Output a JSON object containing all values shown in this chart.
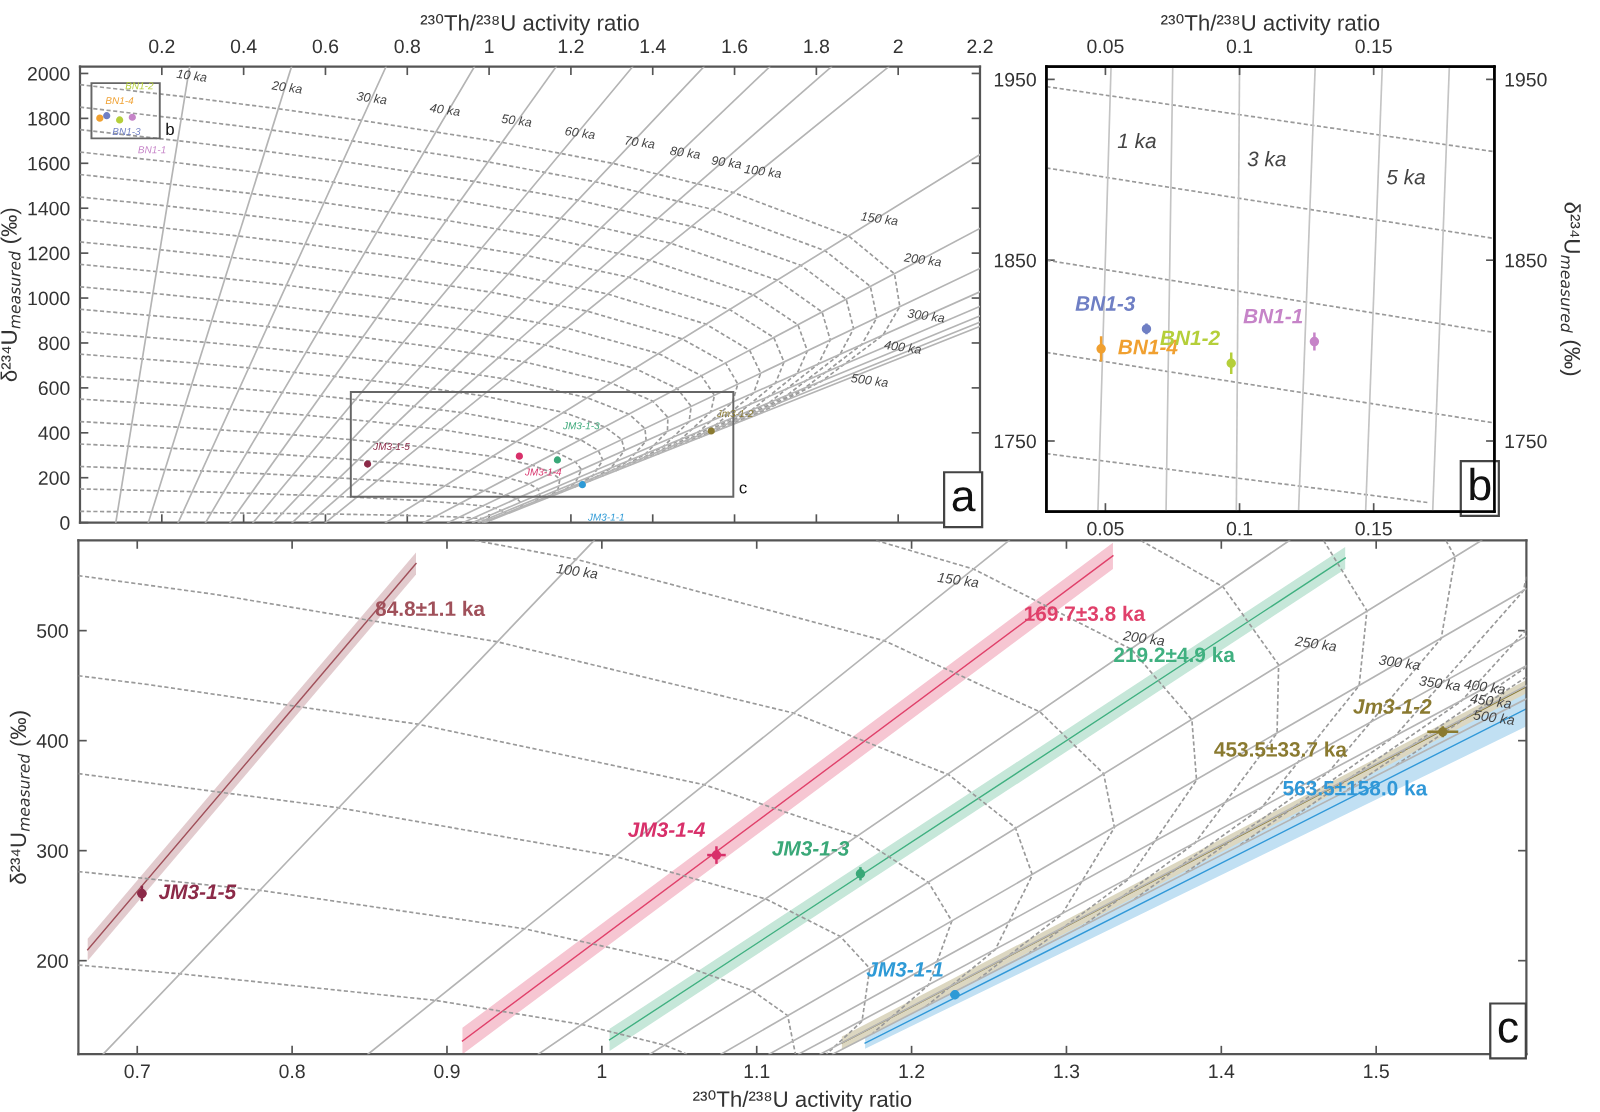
{
  "chart_data": [
    {
      "type": "line",
      "xlabel": "²³⁰Th/²³⁸U activity ratio",
      "ylabel": "δ²³⁴U$_{measured}$ (‰)",
      "xlim": [
        0,
        2.2
      ],
      "xticks": [
        0.2,
        0.4,
        0.6,
        0.8,
        1,
        1.2,
        1.4,
        1.6,
        1.8,
        2,
        2.2
      ],
      "ylim": [
        0,
        2030
      ],
      "yticks": [
        0,
        200,
        400,
        600,
        800,
        1000,
        1200,
        1400,
        1600,
        1800,
        2000
      ],
      "series": [
        {
          "line_style": "dashed",
          "color": "#9a9a9a",
          "x": [
            0,
            0.092,
            0.176,
            0.252,
            0.384,
            0.495,
            0.625,
            0.776,
            0.869,
            0.927,
            0.962,
            0.996,
            1.007
          ],
          "values": [
            50,
            49,
            47,
            46,
            43,
            41,
            38,
            33,
            28,
            25,
            21,
            16,
            12
          ]
        },
        {
          "line_style": "dashed",
          "color": "#9a9a9a",
          "x": [
            0,
            0.1,
            0.192,
            0.275,
            0.419,
            0.537,
            0.677,
            0.834,
            0.928,
            0.984,
            1.015,
            1.039,
            1.04
          ],
          "values": [
            150,
            146,
            142,
            138,
            130,
            123,
            113,
            98,
            85,
            74,
            64,
            48,
            37
          ]
        },
        {
          "line_style": "dashed",
          "color": "#9a9a9a",
          "x": [
            0,
            0.109,
            0.208,
            0.298,
            0.453,
            0.58,
            0.728,
            0.892,
            0.987,
            1.041,
            1.068,
            1.082,
            1.074
          ],
          "values": [
            250,
            243,
            236,
            230,
            217,
            205,
            188,
            164,
            142,
            123,
            107,
            81,
            61
          ]
        },
        {
          "line_style": "dashed",
          "color": "#9a9a9a",
          "x": [
            0,
            0.118,
            0.224,
            0.321,
            0.487,
            0.622,
            0.779,
            0.95,
            1.046,
            1.097,
            1.12,
            1.125,
            1.108
          ],
          "values": [
            350,
            340,
            331,
            322,
            304,
            287,
            264,
            229,
            199,
            173,
            150,
            113,
            85
          ]
        },
        {
          "line_style": "dashed",
          "color": "#9a9a9a",
          "x": [
            0,
            0.126,
            0.241,
            0.344,
            0.521,
            0.665,
            0.83,
            1.008,
            1.106,
            1.154,
            1.173,
            1.168,
            1.141
          ],
          "values": [
            450,
            437,
            425,
            413,
            391,
            369,
            339,
            295,
            256,
            222,
            193,
            145,
            110
          ]
        },
        {
          "line_style": "dashed",
          "color": "#9a9a9a",
          "x": [
            0,
            0.135,
            0.257,
            0.367,
            0.555,
            0.707,
            0.881,
            1.066,
            1.165,
            1.211,
            1.226,
            1.211,
            1.175
          ],
          "values": [
            550,
            535,
            520,
            505,
            478,
            451,
            415,
            360,
            313,
            271,
            236,
            178,
            134
          ]
        },
        {
          "line_style": "dashed",
          "color": "#9a9a9a",
          "x": [
            0,
            0.144,
            0.273,
            0.39,
            0.589,
            0.75,
            0.932,
            1.124,
            1.224,
            1.267,
            1.278,
            1.254,
            1.209
          ],
          "values": [
            650,
            632,
            614,
            597,
            564,
            533,
            490,
            425,
            369,
            321,
            278,
            210,
            158
          ]
        },
        {
          "line_style": "dashed",
          "color": "#9a9a9a",
          "x": [
            0,
            0.152,
            0.289,
            0.413,
            0.623,
            0.792,
            0.983,
            1.182,
            1.283,
            1.324,
            1.331,
            1.297,
            1.243
          ],
          "values": [
            750,
            729,
            709,
            689,
            651,
            615,
            565,
            491,
            426,
            370,
            321,
            242,
            183
          ]
        },
        {
          "line_style": "dashed",
          "color": "#9a9a9a",
          "x": [
            0,
            0.161,
            0.306,
            0.436,
            0.657,
            0.835,
            1.035,
            1.24,
            1.342,
            1.381,
            1.384,
            1.34,
            1.276
          ],
          "values": [
            850,
            826,
            803,
            781,
            738,
            697,
            641,
            556,
            483,
            419,
            364,
            274,
            207
          ]
        },
        {
          "line_style": "dashed",
          "color": "#9a9a9a",
          "x": [
            0,
            0.169,
            0.322,
            0.459,
            0.691,
            0.877,
            1.086,
            1.298,
            1.401,
            1.437,
            1.436,
            1.383,
            1.31
          ],
          "values": [
            950,
            923,
            898,
            873,
            825,
            779,
            716,
            622,
            540,
            469,
            407,
            307,
            231
          ]
        },
        {
          "line_style": "dashed",
          "color": "#9a9a9a",
          "x": [
            0,
            0.178,
            0.338,
            0.482,
            0.725,
            0.92,
            1.137,
            1.356,
            1.46,
            1.494,
            1.489,
            1.426,
            1.344
          ],
          "values": [
            1050,
            1021,
            992,
            965,
            912,
            862,
            791,
            687,
            597,
            518,
            450,
            339,
            256
          ]
        },
        {
          "line_style": "dashed",
          "color": "#9a9a9a",
          "x": [
            0,
            0.187,
            0.354,
            0.505,
            0.759,
            0.962,
            1.188,
            1.414,
            1.519,
            1.551,
            1.542,
            1.469,
            1.377
          ],
          "values": [
            1150,
            1118,
            1087,
            1057,
            998,
            944,
            867,
            753,
            654,
            567,
            493,
            371,
            280
          ]
        },
        {
          "line_style": "dashed",
          "color": "#9a9a9a",
          "x": [
            0,
            0.195,
            0.371,
            0.528,
            0.793,
            1.005,
            1.239,
            1.472,
            1.578,
            1.608,
            1.595,
            1.512,
            1.411
          ],
          "values": [
            1250,
            1215,
            1181,
            1148,
            1085,
            1026,
            942,
            818,
            711,
            617,
            536,
            404,
            304
          ]
        },
        {
          "line_style": "dashed",
          "color": "#9a9a9a",
          "x": [
            0,
            0.204,
            0.387,
            0.551,
            0.827,
            1.047,
            1.29,
            1.53,
            1.637,
            1.664,
            1.647,
            1.555,
            1.445
          ],
          "values": [
            1350,
            1312,
            1276,
            1240,
            1172,
            1108,
            1018,
            884,
            767,
            666,
            578,
            436,
            329
          ]
        },
        {
          "line_style": "dashed",
          "color": "#9a9a9a",
          "x": [
            0,
            0.213,
            0.403,
            0.574,
            0.862,
            1.09,
            1.341,
            1.588,
            1.696,
            1.721,
            1.7,
            1.598,
            1.479
          ],
          "values": [
            1450,
            1410,
            1370,
            1332,
            1259,
            1190,
            1093,
            949,
            824,
            715,
            621,
            468,
            353
          ]
        },
        {
          "line_style": "dashed",
          "color": "#9a9a9a",
          "x": [
            0,
            0.221,
            0.419,
            0.597,
            0.896,
            1.132,
            1.393,
            1.646,
            1.755,
            1.778,
            1.753,
            1.641,
            1.512
          ],
          "values": [
            1550,
            1507,
            1465,
            1424,
            1346,
            1272,
            1168,
            1014,
            881,
            765,
            664,
            500,
            377
          ]
        },
        {
          "line_style": "dashed",
          "color": "#9a9a9a",
          "x": [
            0,
            0.23,
            0.436,
            0.62,
            0.93,
            1.175,
            1.444,
            1.704,
            1.814,
            1.834,
            1.805,
            1.684,
            1.546
          ],
          "values": [
            1650,
            1604,
            1559,
            1516,
            1433,
            1354,
            1244,
            1080,
            938,
            814,
            707,
            533,
            402
          ]
        },
        {
          "line_style": "dashed",
          "color": "#9a9a9a",
          "x": [
            0,
            0.238,
            0.452,
            0.643,
            0.964,
            1.217,
            1.495,
            1.763,
            1.873,
            1.891,
            1.858,
            1.727,
            1.58
          ],
          "values": [
            1750,
            1701,
            1654,
            1608,
            1519,
            1436,
            1319,
            1145,
            995,
            863,
            750,
            565,
            426
          ]
        },
        {
          "line_style": "dashed",
          "color": "#9a9a9a",
          "x": [
            0,
            0.247,
            0.468,
            0.665,
            0.998,
            1.259,
            1.546,
            1.821,
            1.932,
            1.948,
            1.911,
            1.77,
            1.613
          ],
          "values": [
            1850,
            1798,
            1748,
            1700,
            1606,
            1518,
            1395,
            1211,
            1052,
            913,
            793,
            597,
            450
          ]
        },
        {
          "line_style": "dashed",
          "color": "#9a9a9a",
          "x": [
            0,
            0.256,
            0.484,
            0.688,
            1.032,
            1.302,
            1.597,
            1.879,
            1.991,
            2.004,
            1.963,
            1.813,
            1.647
          ],
          "values": [
            1950,
            1896,
            1843,
            1791,
            1693,
            1600,
            1470,
            1276,
            1108,
            962,
            835,
            630,
            475
          ]
        },
        {
          "color": "#b4b4b4",
          "x": [
            0.0875,
            0.268
          ],
          "values": [
            0,
            2030
          ]
        },
        {
          "color": "#b4b4b4",
          "x": [
            0.167,
            0.517
          ],
          "values": [
            0,
            2030
          ]
        },
        {
          "color": "#b4b4b4",
          "x": [
            0.24,
            0.748
          ],
          "values": [
            0,
            2030
          ]
        },
        {
          "color": "#b4b4b4",
          "x": [
            0.307,
            0.964
          ],
          "values": [
            0,
            2030
          ]
        },
        {
          "color": "#b4b4b4",
          "x": [
            0.367,
            1.164
          ],
          "values": [
            0,
            2030
          ]
        },
        {
          "color": "#b4b4b4",
          "x": [
            0.423,
            1.351
          ],
          "values": [
            0,
            2030
          ]
        },
        {
          "color": "#b4b4b4",
          "x": [
            0.473,
            1.525
          ],
          "values": [
            0,
            2030
          ]
        },
        {
          "color": "#b4b4b4",
          "x": [
            0.519,
            1.686
          ],
          "values": [
            0,
            2030
          ]
        },
        {
          "color": "#b4b4b4",
          "x": [
            0.561,
            1.837
          ],
          "values": [
            0,
            2030
          ]
        },
        {
          "color": "#b4b4b4",
          "x": [
            0.6,
            1.977
          ],
          "values": [
            0,
            2030
          ]
        },
        {
          "color": "#b4b4b4",
          "x": [
            0.747,
            2.2
          ],
          "values": [
            0,
            1639
          ]
        },
        {
          "color": "#b4b4b4",
          "x": [
            0.84,
            2.2
          ],
          "values": [
            0,
            1310
          ]
        },
        {
          "color": "#b4b4b4",
          "x": [
            0.899,
            2.2
          ],
          "values": [
            0,
            1132
          ]
        },
        {
          "color": "#b4b4b4",
          "x": [
            0.936,
            2.2
          ],
          "values": [
            0,
            1028
          ]
        },
        {
          "color": "#b4b4b4",
          "x": [
            0.96,
            2.2
          ],
          "values": [
            0,
            963
          ]
        },
        {
          "color": "#b4b4b4",
          "x": [
            0.974,
            2.2
          ],
          "values": [
            0,
            921
          ]
        },
        {
          "color": "#b4b4b4",
          "x": [
            0.984,
            2.2
          ],
          "values": [
            0,
            893
          ]
        },
        {
          "color": "#b4b4b4",
          "x": [
            0.99,
            2.2
          ],
          "values": [
            0,
            874
          ]
        },
        {
          "type": "scatter",
          "marker": "circle",
          "name": "BN1-4",
          "color": "#f0a030",
          "x": [
            0.0484
          ],
          "values": [
            1801
          ]
        },
        {
          "type": "scatter",
          "marker": "circle",
          "name": "BN1-3",
          "color": "#6f7fc4",
          "x": [
            0.0653
          ],
          "values": [
            1812
          ]
        },
        {
          "type": "scatter",
          "marker": "circle",
          "name": "BN1-2",
          "color": "#b5cf3a",
          "x": [
            0.0969
          ],
          "values": [
            1793
          ]
        },
        {
          "type": "scatter",
          "marker": "circle",
          "name": "BN1-1",
          "color": "#c684c8",
          "x": [
            0.1279
          ],
          "values": [
            1805
          ]
        },
        {
          "type": "scatter",
          "marker": "circle",
          "name": "JM3-1-5",
          "color": "#8c2a48",
          "x": [
            0.703
          ],
          "values": [
            261
          ]
        },
        {
          "type": "scatter",
          "marker": "circle",
          "name": "JM3-1-4",
          "color": "#d8306a",
          "x": [
            1.074
          ],
          "values": [
            296
          ]
        },
        {
          "type": "scatter",
          "marker": "circle",
          "name": "JM3-1-3",
          "color": "#3aa878",
          "x": [
            1.167
          ],
          "values": [
            279
          ]
        },
        {
          "type": "scatter",
          "marker": "circle",
          "name": "JM3-1-1",
          "color": "#2e9ad6",
          "x": [
            1.228
          ],
          "values": [
            169
          ]
        },
        {
          "type": "scatter",
          "marker": "circle",
          "name": "Jm3-1-2",
          "color": "#8a7a30",
          "x": [
            1.543
          ],
          "values": [
            408
          ]
        }
      ],
      "annotations": [
        "a",
        "b",
        "c",
        {
          "text": "10 ka",
          "x": 0.273,
          "y": 1986
        },
        {
          "text": "20 ka",
          "x": 0.506,
          "y": 1934
        },
        {
          "text": "30 ka",
          "x": 0.713,
          "y": 1886
        },
        {
          "text": "40 ka",
          "x": 0.892,
          "y": 1834
        },
        {
          "text": "50 ka",
          "x": 1.067,
          "y": 1786
        },
        {
          "text": "60 ka",
          "x": 1.222,
          "y": 1731
        },
        {
          "text": "70 ka",
          "x": 1.368,
          "y": 1689
        },
        {
          "text": "80 ka",
          "x": 1.479,
          "y": 1643
        },
        {
          "text": "90 ka",
          "x": 1.58,
          "y": 1600
        },
        {
          "text": "100 ka",
          "x": 1.669,
          "y": 1560
        },
        {
          "text": "150 ka",
          "x": 1.954,
          "y": 1349
        },
        {
          "text": "200 ka",
          "x": 2.06,
          "y": 1166
        },
        {
          "text": "300 ka",
          "x": 2.068,
          "y": 917
        },
        {
          "text": "400 ka",
          "x": 2.011,
          "y": 777
        },
        {
          "text": "500 ka",
          "x": 1.93,
          "y": 629
        }
      ]
    },
    {
      "type": "line",
      "x2label": "²³⁰Th/²³⁸U activity ratio",
      "y2label": "δ²³⁴U$_{measured}$ (‰)",
      "xlim": [
        0.028,
        0.195
      ],
      "xticks": [
        0.05,
        0.1,
        0.15
      ],
      "x2lim": [
        0.028,
        0.195
      ],
      "x2ticks": [
        0.05,
        0.1,
        0.15
      ],
      "ylim": [
        1711,
        1957
      ],
      "yticks": [
        1750,
        1850,
        1950
      ],
      "y2lim": [
        1711,
        1957
      ],
      "y2ticks": [
        1750,
        1850,
        1950
      ],
      "series": [
        {
          "line_style": "dashed",
          "color": "#9a9a9a",
          "x": [
            0.028,
            0.195
          ],
          "values": [
            1946,
            1910
          ]
        },
        {
          "line_style": "dashed",
          "color": "#9a9a9a",
          "x": [
            0.028,
            0.195
          ],
          "values": [
            1901,
            1862
          ]
        },
        {
          "line_style": "dashed",
          "color": "#9a9a9a",
          "x": [
            0.028,
            0.195
          ],
          "values": [
            1850,
            1810
          ]
        },
        {
          "line_style": "dashed",
          "color": "#9a9a9a",
          "x": [
            0.028,
            0.195
          ],
          "values": [
            1799,
            1760
          ]
        },
        {
          "line_style": "dashed",
          "color": "#9a9a9a",
          "x": [
            0.028,
            0.17
          ],
          "values": [
            1743,
            1716
          ]
        },
        {
          "color": "#c4c4c4",
          "x": [
            0.0521,
            0.0472
          ],
          "values": [
            1957,
            1711
          ]
        },
        {
          "color": "#c4c4c4",
          "x": [
            0.0751,
            0.0726
          ],
          "values": [
            1957,
            1711
          ]
        },
        {
          "color": "#c4c4c4",
          "x": [
            0.1,
            0.0988
          ],
          "values": [
            1957,
            1711
          ]
        },
        {
          "color": "#c4c4c4",
          "x": [
            0.1282,
            0.122
          ],
          "values": [
            1957,
            1711
          ]
        },
        {
          "color": "#c4c4c4",
          "x": [
            0.1532,
            0.147
          ],
          "values": [
            1957,
            1711
          ]
        },
        {
          "color": "#c4c4c4",
          "x": [
            0.1782,
            0.172
          ],
          "values": [
            1957,
            1711
          ]
        },
        {
          "type": "scatter",
          "marker": "circle",
          "name": "BN1-4",
          "color": "#f0a030",
          "x": [
            0.0484
          ],
          "values": [
            1801
          ],
          "errors": [
            7
          ]
        },
        {
          "type": "scatter",
          "marker": "circle",
          "name": "BN1-3",
          "color": "#6f7fc4",
          "x": [
            0.0653
          ],
          "values": [
            1812
          ],
          "errors": [
            3
          ]
        },
        {
          "type": "scatter",
          "marker": "circle",
          "name": "BN1-2",
          "color": "#b5cf3a",
          "x": [
            0.0969
          ],
          "values": [
            1793
          ],
          "errors": [
            6
          ]
        },
        {
          "type": "scatter",
          "marker": "circle",
          "name": "BN1-1",
          "color": "#c684c8",
          "x": [
            0.1279
          ],
          "values": [
            1805
          ],
          "errors": [
            5
          ]
        }
      ],
      "annotations": [
        "b",
        {
          "text": "1 ka",
          "x": 0.0513,
          "y": 1915
        },
        {
          "text": "3 ka",
          "x": 0.0997,
          "y": 1905
        },
        {
          "text": "5 ka",
          "x": 0.1516,
          "y": 1895
        }
      ]
    },
    {
      "type": "line",
      "xlabel": "²³⁰Th/²³⁸U activity ratio",
      "ylabel": "δ²³⁴U$_{measured}$ (‰)",
      "xlim": [
        0.662,
        1.597
      ],
      "xticks": [
        0.7,
        0.8,
        0.9,
        1,
        1.1,
        1.2,
        1.3,
        1.4,
        1.5
      ],
      "ylim": [
        115,
        582
      ],
      "yticks": [
        200,
        300,
        400,
        500
      ],
      "series": [
        {
          "line_style": "dashed",
          "color": "#9a9a9a",
          "x": [
            0.662,
            0.728,
            0.892,
            0.987,
            1.041,
            1.055
          ],
          "values": [
            196,
            188,
            164,
            142,
            123,
            115
          ]
        },
        {
          "line_style": "dashed",
          "color": "#9a9a9a",
          "x": [
            0.662,
            0.779,
            0.95,
            1.046,
            1.097,
            1.12,
            1.125
          ],
          "values": [
            281,
            264,
            229,
            199,
            173,
            150,
            115
          ]
        },
        {
          "line_style": "dashed",
          "color": "#9a9a9a",
          "x": [
            0.662,
            0.83,
            1.008,
            1.106,
            1.154,
            1.173,
            1.168,
            1.145
          ],
          "values": [
            370,
            339,
            295,
            256,
            222,
            193,
            145,
            115
          ]
        },
        {
          "line_style": "dashed",
          "color": "#9a9a9a",
          "x": [
            0.662,
            0.707,
            0.881,
            1.066,
            1.165,
            1.211,
            1.226,
            1.211,
            1.175
          ],
          "values": [
            459,
            451,
            415,
            360,
            313,
            271,
            236,
            178,
            134
          ]
        },
        {
          "line_style": "dashed",
          "color": "#9a9a9a",
          "x": [
            0.662,
            0.75,
            0.932,
            1.124,
            1.224,
            1.267,
            1.278,
            1.254,
            1.209
          ],
          "values": [
            550,
            533,
            490,
            425,
            369,
            321,
            278,
            210,
            158
          ]
        },
        {
          "line_style": "dashed",
          "color": "#9a9a9a",
          "x": [
            0.918,
            0.983,
            1.182,
            1.283,
            1.324,
            1.331,
            1.297,
            1.243
          ],
          "values": [
            582,
            565,
            491,
            426,
            370,
            321,
            242,
            183
          ]
        },
        {
          "line_style": "dashed",
          "color": "#9a9a9a",
          "x": [
            1.177,
            1.24,
            1.342,
            1.381,
            1.384,
            1.34,
            1.276
          ],
          "values": [
            582,
            556,
            483,
            419,
            364,
            274,
            207
          ]
        },
        {
          "line_style": "dashed",
          "color": "#9a9a9a",
          "x": [
            1.348,
            1.401,
            1.437,
            1.436,
            1.383,
            1.31
          ],
          "values": [
            582,
            540,
            469,
            407,
            307,
            231
          ]
        },
        {
          "line_style": "dashed",
          "color": "#9a9a9a",
          "x": [
            1.466,
            1.494,
            1.489,
            1.426,
            1.344
          ],
          "values": [
            582,
            518,
            450,
            339,
            256
          ]
        },
        {
          "line_style": "dashed",
          "color": "#9a9a9a",
          "x": [
            1.545,
            1.551,
            1.542,
            1.469,
            1.377
          ],
          "values": [
            582,
            567,
            493,
            371,
            280
          ]
        },
        {
          "line_style": "dashed",
          "color": "#9a9a9a",
          "x": [
            1.597,
            1.595,
            1.512,
            1.411
          ],
          "values": [
            549,
            536,
            404,
            304
          ]
        },
        {
          "line_style": "dashed",
          "color": "#9a9a9a",
          "x": [
            1.597,
            1.555,
            1.445
          ],
          "values": [
            501,
            436,
            329
          ]
        },
        {
          "line_style": "dashed",
          "color": "#9a9a9a",
          "x": [
            1.597,
            1.479
          ],
          "values": [
            467,
            353
          ]
        },
        {
          "line_style": "dashed",
          "color": "#9a9a9a",
          "x": [
            1.597,
            1.512
          ],
          "values": [
            458,
            377
          ]
        },
        {
          "color": "#b4b4b4",
          "x": [
            0.678,
            0.995
          ],
          "values": [
            115,
            582
          ]
        },
        {
          "color": "#b4b4b4",
          "x": [
            0.849,
            1.263
          ],
          "values": [
            115,
            582
          ]
        },
        {
          "color": "#b4b4b4",
          "x": [
            0.959,
            1.444
          ],
          "values": [
            115,
            582
          ]
        },
        {
          "color": "#b4b4b4",
          "x": [
            1.031,
            1.568
          ],
          "values": [
            115,
            582
          ]
        },
        {
          "color": "#b4b4b4",
          "x": [
            1.077,
            1.597
          ],
          "values": [
            115,
            538
          ]
        },
        {
          "color": "#b4b4b4",
          "x": [
            1.108,
            1.597
          ],
          "values": [
            115,
            495
          ]
        },
        {
          "color": "#b4b4b4",
          "x": [
            1.127,
            1.597
          ],
          "values": [
            115,
            468
          ]
        },
        {
          "color": "#b4b4b4",
          "x": [
            1.141,
            1.597
          ],
          "values": [
            115,
            450
          ]
        },
        {
          "color": "#b4b4b4",
          "x": [
            1.149,
            1.597
          ],
          "values": [
            115,
            438
          ]
        },
        {
          "name": "84.8±1.1 ka",
          "color": "#a0505a",
          "x": [
            0.668,
            0.88
          ],
          "values": [
            210,
            561
          ],
          "lower": [
            200,
            551
          ],
          "upper": [
            220,
            571
          ]
        },
        {
          "name": "169.7±3.8 ka",
          "color": "#e0406a",
          "x": [
            0.91,
            1.33
          ],
          "values": [
            127,
            568
          ],
          "lower": [
            115,
            556
          ],
          "upper": [
            139,
            580
          ]
        },
        {
          "name": "219.2±4.9 ka",
          "color": "#40b080",
          "x": [
            1.005,
            1.48
          ],
          "values": [
            128,
            566
          ],
          "lower": [
            118,
            556
          ],
          "upper": [
            138,
            576
          ]
        },
        {
          "name": "563.5±158.0 ka",
          "color": "#3098d8",
          "x": [
            1.17,
            1.597
          ],
          "values": [
            125,
            429
          ],
          "lower": [
            120,
            413
          ],
          "upper": [
            130,
            445
          ]
        },
        {
          "name": "453.5±33.7 ka",
          "color": "#8a7a30",
          "x": [
            1.155,
            1.597
          ],
          "values": [
            125,
            449
          ],
          "lower": [
            119,
            443
          ],
          "upper": [
            131,
            455
          ]
        },
        {
          "type": "scatter",
          "marker": "circle",
          "name": "JM3-1-5",
          "color": "#8c2a48",
          "x": [
            0.703
          ],
          "values": [
            261
          ],
          "errors": [
            7
          ],
          "xerrors": [
            0.003
          ]
        },
        {
          "type": "scatter",
          "marker": "circle",
          "name": "JM3-1-4",
          "color": "#d8306a",
          "x": [
            1.074
          ],
          "values": [
            296
          ],
          "errors": [
            8
          ],
          "xerrors": [
            0.006
          ]
        },
        {
          "type": "scatter",
          "marker": "circle",
          "name": "JM3-1-3",
          "color": "#3aa878",
          "x": [
            1.167
          ],
          "values": [
            279
          ],
          "errors": [
            6
          ],
          "xerrors": [
            0.002
          ]
        },
        {
          "type": "scatter",
          "marker": "circle",
          "name": "JM3-1-1",
          "color": "#2e9ad6",
          "x": [
            1.228
          ],
          "values": [
            169
          ],
          "errors": [
            4
          ],
          "xerrors": [
            0.003
          ]
        },
        {
          "type": "scatter",
          "marker": "circle",
          "name": "Jm3-1-2",
          "color": "#8a7a30",
          "x": [
            1.543
          ],
          "values": [
            408
          ],
          "errors": [
            5
          ],
          "xerrors": [
            0.01
          ]
        }
      ],
      "annotations": [
        "c",
        {
          "text": "100 ka",
          "x": 0.984,
          "y": 553
        },
        {
          "text": "150 ka",
          "x": 1.23,
          "y": 545
        },
        {
          "text": "200 ka",
          "x": 1.35,
          "y": 492
        },
        {
          "text": "250 ka",
          "x": 1.461,
          "y": 487
        },
        {
          "text": "300 ka",
          "x": 1.515,
          "y": 470
        },
        {
          "text": "350 ka",
          "x": 1.541,
          "y": 451
        },
        {
          "text": "400 ka",
          "x": 1.57,
          "y": 448
        },
        {
          "text": "450 ka",
          "x": 1.574,
          "y": 435
        },
        {
          "text": "500 ka",
          "x": 1.576,
          "y": 420
        }
      ]
    }
  ]
}
